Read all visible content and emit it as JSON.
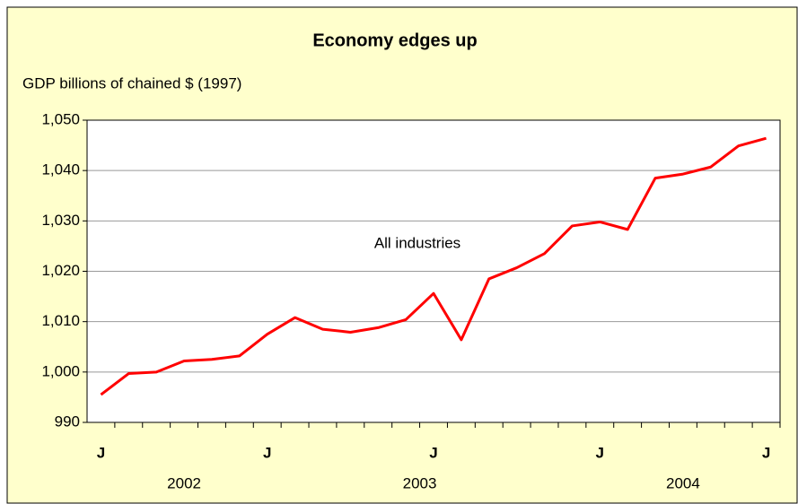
{
  "chart_data": {
    "type": "line",
    "title": "Economy edges up",
    "y_label": "GDP billions of chained $ (1997)",
    "annotation": "All industries",
    "categories": [
      "J",
      null,
      null,
      null,
      null,
      null,
      "J",
      null,
      null,
      null,
      null,
      null,
      "J",
      null,
      null,
      null,
      null,
      null,
      "J",
      null,
      null,
      null,
      null,
      null,
      "J"
    ],
    "year_labels": [
      "2002",
      "2003",
      "2004"
    ],
    "series": [
      {
        "name": "All industries",
        "color": "#ff0000",
        "values": [
          995.5,
          999.7,
          1000.0,
          1002.2,
          1002.5,
          1003.2,
          1007.5,
          1010.8,
          1008.5,
          1007.9,
          1008.8,
          1010.4,
          1015.6,
          1006.4,
          1018.5,
          1020.7,
          1023.5,
          1029.0,
          1029.8,
          1028.3,
          1038.5,
          1039.3,
          1040.7,
          1044.9,
          1046.4
        ]
      }
    ],
    "ylim": [
      990,
      1050
    ],
    "yticks": [
      990,
      {
        "value": 1000,
        "label": "1,000"
      },
      {
        "value": 1010,
        "label": "1,010"
      },
      {
        "value": 1020,
        "label": "1,020"
      },
      {
        "value": 1030,
        "label": "1,030"
      },
      {
        "value": 1040,
        "label": "1,040"
      },
      {
        "value": 1050,
        "label": "1,050"
      }
    ],
    "grid": true
  }
}
